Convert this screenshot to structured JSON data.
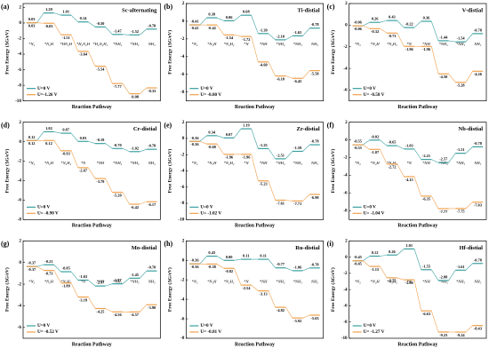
{
  "chart_data": [
    {
      "type": "line",
      "label": "(a)",
      "title": "Sc-alternating",
      "ylabel": "Free Energy (ΔG/eV)",
      "xlabel": "Reaction Pathway",
      "categories": [
        "*N₂",
        "*N₂H",
        "*HN₂H",
        "*H₂N₂H",
        "*H₂N₂H₂",
        "*NH₂",
        "*NH₃",
        "NH₃"
      ],
      "series": [
        {
          "name": "U=0 V",
          "color": "#3a9fa0",
          "values": [
            0.03,
            1.29,
            1.01,
            0.14,
            -0.5,
            -1.47,
            -1.52,
            -0.78
          ],
          "value_labels": [
            "0.03",
            "1.29",
            "1.01",
            "0.14",
            "-0.50",
            "-1.47",
            "-1.52",
            "-0.78"
          ]
        },
        {
          "name": "U=-1.26 V",
          "color": "#f0a04b",
          "values": [
            0.03,
            -0.03,
            -1.51,
            -3.64,
            -5.54,
            -7.77,
            -9.08,
            -8.33
          ],
          "value_labels": [
            "0.03",
            "-0.03",
            "-1.51",
            "-3.64",
            "-5.54",
            "-7.77",
            "-9.08",
            "-8.33"
          ]
        }
      ],
      "ylim": [
        -10,
        2.5
      ],
      "yticks": [
        2,
        0,
        -2,
        -4,
        -6,
        -8,
        -10
      ]
    },
    {
      "type": "line",
      "label": "(b)",
      "title": "Ti-distial",
      "ylabel": "Free Energy (ΔG/eV)",
      "xlabel": "Reaction Pathway",
      "categories": [
        "*N₂",
        "*N₂H",
        "*N₂H₂",
        "*N",
        "*NH",
        "*NH₂",
        "*NH₃",
        "NH₃"
      ],
      "series": [
        {
          "name": "U=0 V",
          "color": "#3a9fa0",
          "values": [
            -0.41,
            0.39,
            0.06,
            0.68,
            -1.39,
            -2.1,
            -1.65,
            -0.78
          ],
          "value_labels": [
            "-0.41",
            "0.39",
            "0.06",
            "0.68",
            "-1.39",
            "-2.10",
            "-1.65",
            "-0.78"
          ]
        },
        {
          "name": "U= -0.80 V",
          "color": "#f0a04b",
          "values": [
            -0.41,
            -0.42,
            -1.54,
            -1.72,
            -4.6,
            -6.18,
            -6.45,
            -5.58
          ],
          "value_labels": [
            "-0.41",
            "-0.42",
            "-1.54",
            "-1.72",
            "-4.60",
            "-6.18",
            "-6.45",
            "-5.58"
          ]
        }
      ],
      "ylim": [
        -9,
        2
      ],
      "yticks": [
        2,
        0,
        -2,
        -4,
        -6,
        -8
      ]
    },
    {
      "type": "line",
      "label": "(c)",
      "title": "V-distial",
      "ylabel": "Free Energy (ΔG/eV)",
      "xlabel": "Reaction Pathway",
      "categories": [
        "*N₂",
        "*N₂H",
        "*N₂H₂",
        "*N",
        "*NH",
        "*NH₂",
        "*NH₃",
        "NH₃"
      ],
      "series": [
        {
          "name": "U=0 V",
          "color": "#3a9fa0",
          "values": [
            -0.06,
            0.26,
            0.43,
            -0.22,
            0.36,
            -1.44,
            -1.54,
            -0.78
          ],
          "value_labels": [
            "-0.06",
            "0.26",
            "0.43",
            "-0.22",
            "0.36",
            "-1.44",
            "-1.54",
            "-0.78"
          ]
        },
        {
          "name": "U= -0.58 V",
          "color": "#f0a04b",
          "values": [
            -0.06,
            -0.32,
            -0.73,
            -1.96,
            -1.96,
            -4.5,
            -5.28,
            -4.26
          ],
          "value_labels": [
            "-0.06",
            "-0.32",
            "-0.73",
            "-1.96",
            "-1.96",
            "-4.50",
            "-5.28",
            "-4.26"
          ]
        }
      ],
      "ylim": [
        -7,
        2
      ],
      "yticks": [
        2,
        0,
        -2,
        -4,
        -6
      ]
    },
    {
      "type": "line",
      "label": "(d)",
      "title": "Cr-distial",
      "ylabel": "Free Energy (ΔG/eV)",
      "xlabel": "Reaction Pathway",
      "categories": [
        "*N₂",
        "*N₂H",
        "*N₂H₂",
        "*N",
        "*NH",
        "*NH₂",
        "*NH₃",
        "NH₃"
      ],
      "series": [
        {
          "name": "U=0 V",
          "color": "#3a9fa0",
          "values": [
            0.12,
            1.02,
            0.87,
            0.03,
            -0.19,
            -0.7,
            -1.02,
            -0.78
          ],
          "value_labels": [
            "0.12",
            "1.02",
            "0.87",
            "0.03",
            "-0.19",
            "-0.70",
            "-1.02",
            "-0.78"
          ]
        },
        {
          "name": "U= -0.90 V",
          "color": "#f0a04b",
          "values": [
            0.12,
            0.12,
            -0.93,
            -2.67,
            -3.79,
            -5.2,
            -6.42,
            -6.17
          ],
          "value_labels": [
            "0.12",
            "0.12",
            "-0.93",
            "-2.67",
            "-3.79",
            "-5.20",
            "-6.42",
            "-6.17"
          ]
        }
      ],
      "ylim": [
        -8,
        2
      ],
      "yticks": [
        2,
        0,
        -2,
        -4,
        -6,
        -8
      ]
    },
    {
      "type": "line",
      "label": "(e)",
      "title": "Zr-distial",
      "ylabel": "Free Energy (ΔG/eV)",
      "xlabel": "Reaction Pathway",
      "categories": [
        "*N₂",
        "*N₂H",
        "*N₂H₂",
        "*N",
        "*NH",
        "*NH₂",
        "*NH₃",
        "NH₃"
      ],
      "series": [
        {
          "name": "U=0 V",
          "color": "#3a9fa0",
          "values": [
            -0.36,
            0.34,
            0.07,
            1.19,
            -1.25,
            -2.51,
            -1.59,
            -0.78
          ],
          "value_labels": [
            "-0.36",
            "0.34",
            "0.07",
            "1.19",
            "-1.25",
            "-2.51",
            "-1.59",
            "-0.78"
          ]
        },
        {
          "name": "U= -1.02 V",
          "color": "#f0a04b",
          "values": [
            -0.36,
            -0.68,
            -1.96,
            -1.96,
            -5.23,
            -7.61,
            -7.71,
            -6.9
          ],
          "value_labels": [
            "-0.36",
            "-0.68",
            "-1.96",
            "-1.96",
            "-5.23",
            "-7.61",
            "-7.71",
            "-6.90"
          ]
        }
      ],
      "ylim": [
        -10,
        2
      ],
      "yticks": [
        2,
        0,
        -2,
        -4,
        -6,
        -8,
        -10
      ]
    },
    {
      "type": "line",
      "label": "(f)",
      "title": "Nb-distial",
      "ylabel": "Free Energy (ΔG/eV)",
      "xlabel": "Reaction Pathway",
      "categories": [
        "*N₂",
        "*N₂H",
        "*N₂H₂",
        "*N",
        "*NH",
        "*NH₂",
        "*NH₃",
        "NH₃"
      ],
      "series": [
        {
          "name": "U=0 V",
          "color": "#3a9fa0",
          "values": [
            -0.55,
            -0.02,
            -0.65,
            -1.03,
            -2.21,
            -2.57,
            -1.51,
            -0.78
          ],
          "value_labels": [
            "-0.55",
            "-0.02",
            "-0.65",
            "-1.03",
            "-2.21",
            "-2.57",
            "-1.51",
            "-0.78"
          ]
        },
        {
          "name": "U= -1.04 V",
          "color": "#f0a04b",
          "values": [
            -0.55,
            -1.07,
            -2.72,
            -4.15,
            -6.35,
            -7.77,
            -7.75,
            -7.03
          ],
          "value_labels": [
            "-0.55",
            "-1.07",
            "-2.72",
            "-4.15",
            "-6.35",
            "-7.77",
            "-7.75",
            "-7.03"
          ]
        }
      ],
      "ylim": [
        -9,
        2
      ],
      "yticks": [
        2,
        0,
        -2,
        -4,
        -6,
        -8
      ]
    },
    {
      "type": "line",
      "label": "(g)",
      "title": "Mo-distial",
      "ylabel": "Free Energy (ΔG/eV)",
      "xlabel": "Reaction Pathway",
      "categories": [
        "*N₂",
        "*N₂H",
        "*N₂H₂",
        "*N",
        "*NH",
        "*NH₂",
        "*NH₃",
        "NH₃"
      ],
      "series": [
        {
          "name": "U=0 V",
          "color": "#3a9fa0",
          "values": [
            -0.37,
            -0.21,
            -0.85,
            -1.63,
            -2.17,
            -1.97,
            -1.45,
            -0.78
          ],
          "value_labels": [
            "-0.37",
            "-0.21",
            "-0.85",
            "-1.63",
            "-2.17",
            "-1.97",
            "-1.45",
            "-0.78"
          ]
        },
        {
          "name": "U= -0.52 V",
          "color": "#f0a04b",
          "values": [
            -0.37,
            -0.73,
            -1.89,
            -3.19,
            -4.25,
            -4.56,
            -4.57,
            -3.9
          ],
          "value_labels": [
            "-0.37",
            "-0.73",
            "-1.89",
            "-3.19",
            "-4.25",
            "-4.56",
            "-4.57",
            "-3.90"
          ]
        }
      ],
      "ylim": [
        -7,
        2
      ],
      "yticks": [
        2,
        0,
        -2,
        -4,
        -6
      ]
    },
    {
      "type": "line",
      "label": "(h)",
      "title": "Ru-distial",
      "ylabel": "Free Energy (ΔG/eV)",
      "xlabel": "Reaction Pathway",
      "categories": [
        "*N₂",
        "*N₂H",
        "*N₂H₂",
        "*N",
        "*NH",
        "*NH₂",
        "*NH₃",
        "NH₃"
      ],
      "series": [
        {
          "name": "U=0 V",
          "color": "#3a9fa0",
          "values": [
            -0.36,
            0.43,
            0.0,
            0.11,
            0.11,
            -0.77,
            -1.06,
            -0.78
          ],
          "value_labels": [
            "-0.36",
            "0.43",
            "0.00",
            "0.11",
            "0.11",
            "-0.77",
            "-1.06",
            "-0.78"
          ]
        },
        {
          "name": "U= -0.81 V",
          "color": "#f0a04b",
          "values": [
            -0.36,
            -0.38,
            -0.82,
            -2.54,
            -3.13,
            -4.82,
            -5.92,
            -5.63
          ],
          "value_labels": [
            "-0.36",
            "-0.38",
            "-0.82",
            "-2.54",
            "-3.13",
            "-4.82",
            "-5.92",
            "-5.63"
          ]
        }
      ],
      "ylim": [
        -8,
        2
      ],
      "yticks": [
        2,
        0,
        -2,
        -4,
        -6,
        -8
      ]
    },
    {
      "type": "line",
      "label": "(i)",
      "title": "Hf-distial",
      "ylabel": "Free Energy (ΔG/eV)",
      "xlabel": "Reaction Pathway",
      "categories": [
        "*N₂",
        "*N₂H",
        "*N₂H₂",
        "*N",
        "*NH",
        "*NH₂",
        "*NH₃",
        "NH₃"
      ],
      "series": [
        {
          "name": "U=0 V",
          "color": "#3a9fa0",
          "values": [
            -0.45,
            0.12,
            0.26,
            1.01,
            -1.55,
            -2.88,
            -1.61,
            -0.78
          ],
          "value_labels": [
            "-0.45",
            "0.12",
            "0.26",
            "1.01",
            "-1.55",
            "-2.88",
            "-1.61",
            "-0.78"
          ]
        },
        {
          "name": "U= -1.27 V",
          "color": "#f0a04b",
          "values": [
            -0.45,
            -1.15,
            -2.55,
            -2.8,
            -6.63,
            -9.23,
            -9.24,
            -8.43
          ],
          "value_labels": [
            "-0.45",
            "-1.15",
            "-2.55",
            "-2.80",
            "-6.63",
            "-9.23",
            "-9.24",
            "-8.43"
          ]
        }
      ],
      "ylim": [
        -10,
        2
      ],
      "yticks": [
        2,
        0,
        -2,
        -4,
        -6,
        -8,
        -10
      ]
    }
  ]
}
